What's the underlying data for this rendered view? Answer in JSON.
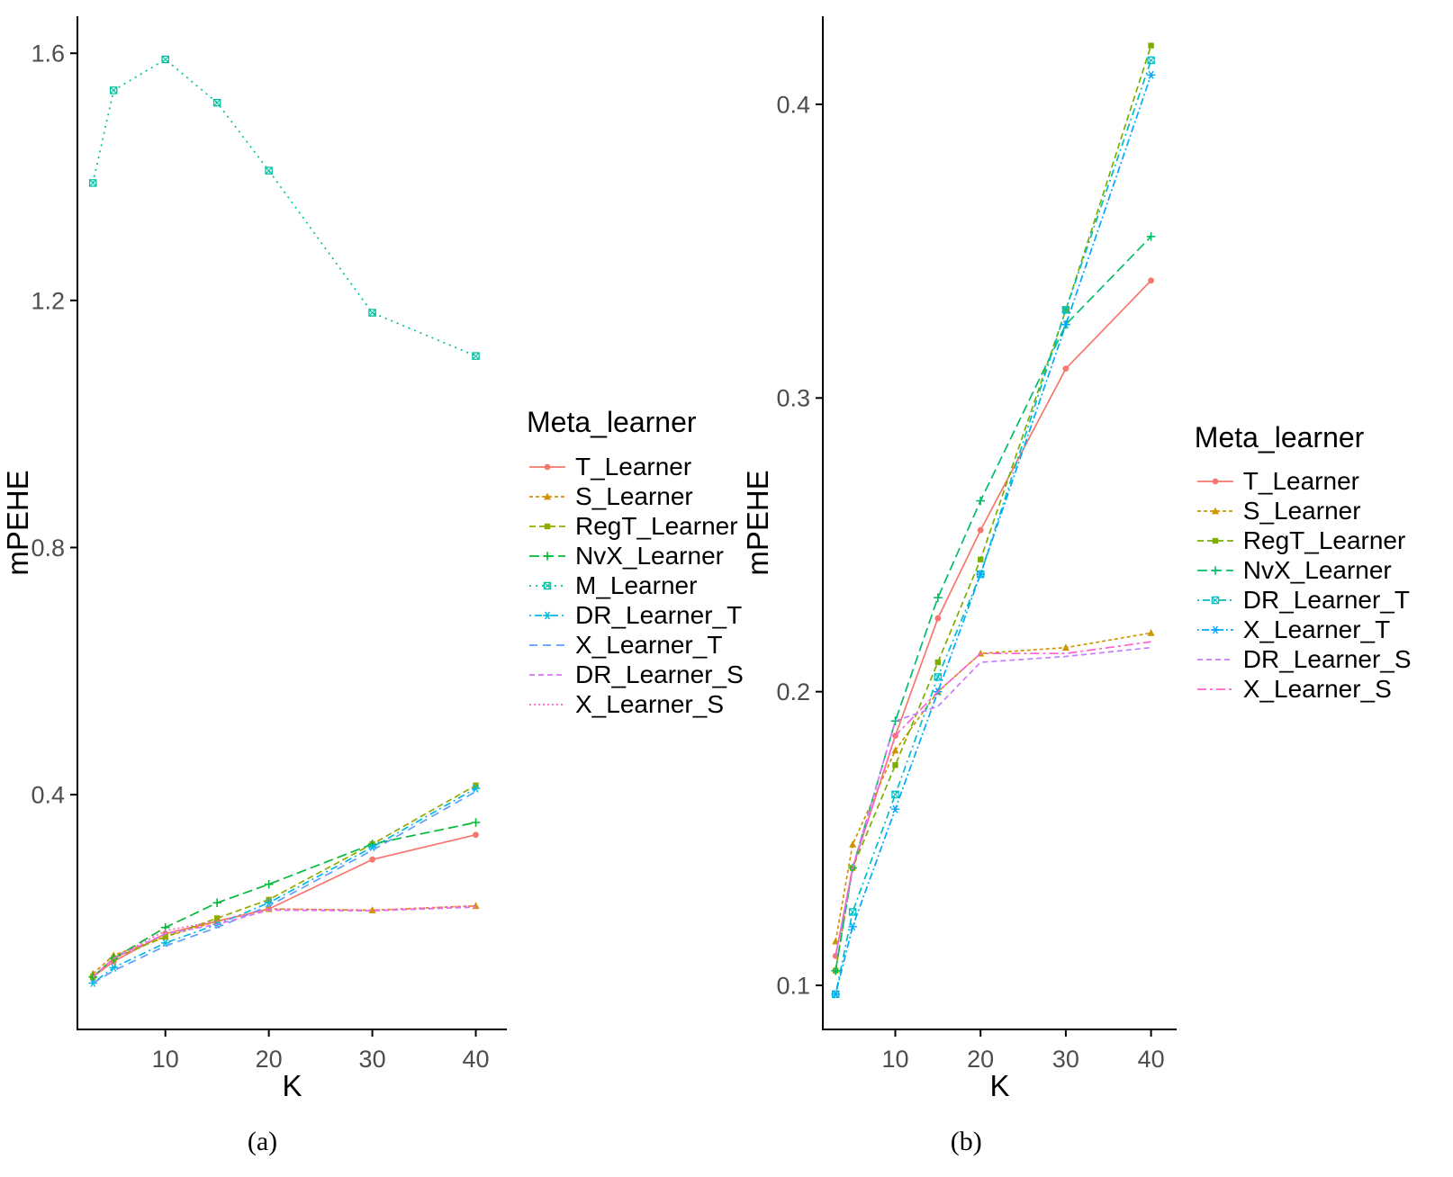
{
  "chart_data": [
    {
      "type": "line",
      "caption": "(a)",
      "legend_title": "Meta_learner",
      "xlabel": "K",
      "ylabel": "mPEHE",
      "x": [
        3,
        5,
        10,
        15,
        20,
        30,
        40
      ],
      "x_ticks": [
        10,
        20,
        30,
        40
      ],
      "y_ticks": [
        0.4,
        0.8,
        1.2,
        1.6
      ],
      "xlim": [
        1.5,
        43
      ],
      "ylim": [
        0.02,
        1.66
      ],
      "grid": false,
      "legend_position": "right",
      "series": [
        {
          "name": "T_Learner",
          "color": "#F8766D",
          "dash": "",
          "shape": "circle",
          "values": [
            0.105,
            0.13,
            0.175,
            0.195,
            0.215,
            0.295,
            0.335
          ]
        },
        {
          "name": "S_Learner",
          "color": "#D39200",
          "dash": "4,3",
          "shape": "triangle",
          "values": [
            0.11,
            0.14,
            0.17,
            0.195,
            0.215,
            0.213,
            0.22
          ]
        },
        {
          "name": "RegT_Learner",
          "color": "#93AA00",
          "dash": "7,4",
          "shape": "square",
          "values": [
            0.105,
            0.135,
            0.17,
            0.2,
            0.23,
            0.32,
            0.415
          ]
        },
        {
          "name": "NvX_Learner",
          "color": "#00BA38",
          "dash": "11,5",
          "shape": "plus",
          "values": [
            0.105,
            0.135,
            0.185,
            0.225,
            0.255,
            0.32,
            0.355
          ]
        },
        {
          "name": "M_Learner",
          "color": "#00C19F",
          "dash": "2,5",
          "shape": "square-cross",
          "values": [
            1.39,
            1.54,
            1.59,
            1.52,
            1.41,
            1.18,
            1.11
          ]
        },
        {
          "name": "DR_Learner_T",
          "color": "#00B9E3",
          "dash": "2,4,8,4",
          "shape": "asterisk",
          "values": [
            0.095,
            0.12,
            0.16,
            0.19,
            0.225,
            0.315,
            0.41
          ]
        },
        {
          "name": "X_Learner_T",
          "color": "#619CFF",
          "dash": "9,6",
          "shape": "none",
          "values": [
            0.095,
            0.115,
            0.155,
            0.185,
            0.22,
            0.31,
            0.405
          ]
        },
        {
          "name": "DR_Learner_S",
          "color": "#DB72FB",
          "dash": "6,4",
          "shape": "none",
          "values": [
            0.105,
            0.135,
            0.175,
            0.19,
            0.213,
            0.212,
            0.218
          ]
        },
        {
          "name": "X_Learner_S",
          "color": "#FF61C3",
          "dash": "2,3",
          "shape": "none",
          "values": [
            0.105,
            0.135,
            0.18,
            0.195,
            0.215,
            0.213,
            0.22
          ]
        }
      ]
    },
    {
      "type": "line",
      "caption": "(b)",
      "legend_title": "Meta_learner",
      "xlabel": "K",
      "ylabel": "mPEHE",
      "x": [
        3,
        5,
        10,
        15,
        20,
        30,
        40
      ],
      "x_ticks": [
        10,
        20,
        30,
        40
      ],
      "y_ticks": [
        0.1,
        0.2,
        0.3,
        0.4
      ],
      "xlim": [
        1.5,
        43
      ],
      "ylim": [
        0.085,
        0.43
      ],
      "grid": false,
      "legend_position": "right",
      "series": [
        {
          "name": "T_Learner",
          "color": "#F8766D",
          "dash": "",
          "shape": "circle",
          "values": [
            0.11,
            0.14,
            0.185,
            0.225,
            0.255,
            0.31,
            0.34
          ]
        },
        {
          "name": "S_Learner",
          "color": "#CD9600",
          "dash": "4,3",
          "shape": "triangle",
          "values": [
            0.115,
            0.148,
            0.18,
            0.2,
            0.213,
            0.215,
            0.22
          ]
        },
        {
          "name": "RegT_Learner",
          "color": "#7CAE00",
          "dash": "7,4",
          "shape": "square",
          "values": [
            0.105,
            0.14,
            0.175,
            0.21,
            0.245,
            0.33,
            0.42
          ]
        },
        {
          "name": "NvX_Learner",
          "color": "#00BE67",
          "dash": "11,5",
          "shape": "plus",
          "values": [
            0.105,
            0.14,
            0.19,
            0.232,
            0.265,
            0.325,
            0.355
          ]
        },
        {
          "name": "DR_Learner_T",
          "color": "#00BFC4",
          "dash": "2,4,8,4",
          "shape": "square-cross",
          "values": [
            0.097,
            0.125,
            0.165,
            0.205,
            0.24,
            0.33,
            0.415
          ]
        },
        {
          "name": "X_Learner_T",
          "color": "#00A9FF",
          "dash": "2,3,8,3",
          "shape": "asterisk",
          "values": [
            0.097,
            0.12,
            0.16,
            0.2,
            0.24,
            0.325,
            0.41
          ]
        },
        {
          "name": "DR_Learner_S",
          "color": "#C77CFF",
          "dash": "6,4",
          "shape": "none",
          "values": [
            0.11,
            0.14,
            0.19,
            0.195,
            0.21,
            0.212,
            0.215
          ]
        },
        {
          "name": "X_Learner_S",
          "color": "#FF61CC",
          "dash": "10,4,3,4",
          "shape": "none",
          "values": [
            0.11,
            0.14,
            0.185,
            0.2,
            0.213,
            0.213,
            0.217
          ]
        }
      ]
    }
  ]
}
